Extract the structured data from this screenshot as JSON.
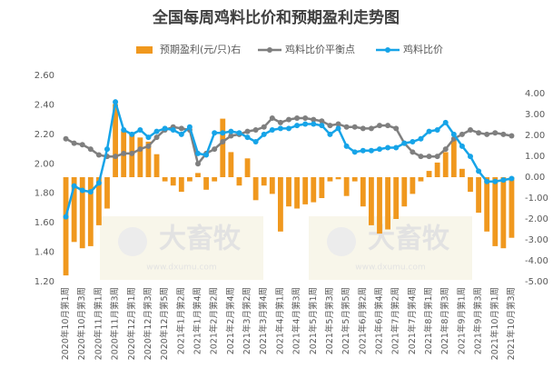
{
  "chart_data": {
    "type": "combo",
    "title": "全国每周鸡料比价和预期盈利走势图",
    "categories": [
      "2020年10月第1周",
      null,
      "2020年10月第3周",
      null,
      "2020年11月第1周",
      null,
      "2020年11月第3周",
      null,
      "2020年12月第1周",
      null,
      "2020年12月第3周",
      null,
      "2020年12月第5周",
      null,
      "2021年1月第2周",
      null,
      "2021年1月第4周",
      null,
      "2021年2月第2周",
      null,
      "2021年2月第4周",
      null,
      "2021年3月第2周",
      null,
      "2021年3月第4周",
      null,
      "2021年4月第1周",
      null,
      "2021年4月第3周",
      null,
      "2021年5月第1周",
      null,
      "2021年5月第3周",
      null,
      "2021年5月第5周",
      null,
      "2021年6月第2周",
      null,
      "2021年6月第4周",
      null,
      "2021年7月第2周",
      null,
      "2021年7月第4周",
      null,
      "2021年8月第1周",
      null,
      "2021年8月第3周",
      null,
      "2021年9月第1周",
      null,
      "2021年9月第3周",
      null,
      "2021年10月第1周",
      null,
      "2021年10月第3周"
    ],
    "series": [
      {
        "name": "预期盈利(元/只)右",
        "type": "bar",
        "axis": "y2",
        "color": "#f0981e",
        "values": [
          -4.7,
          -3.1,
          -3.4,
          -3.3,
          -2.3,
          -1.5,
          3.5,
          2.2,
          2.1,
          1.9,
          1.7,
          1.1,
          -0.2,
          -0.4,
          -0.7,
          -0.2,
          0.2,
          -0.6,
          -0.2,
          2.8,
          1.2,
          -0.4,
          0.9,
          -1.1,
          -0.4,
          -0.8,
          -2.6,
          -1.4,
          -1.5,
          -1.3,
          -1.2,
          -1.0,
          -0.2,
          -0.1,
          -0.9,
          -0.2,
          -1.4,
          -2.3,
          -2.7,
          -2.5,
          -2.0,
          -1.4,
          -0.8,
          -0.2,
          0.3,
          0.7,
          1.2,
          1.8,
          0.4,
          -0.7,
          -1.7,
          -2.6,
          -3.3,
          -3.4,
          -2.9
        ]
      },
      {
        "name": "鸡料比价平衡点",
        "type": "line",
        "color": "#7f7f7f",
        "values": [
          2.17,
          2.14,
          2.13,
          2.1,
          2.06,
          2.05,
          2.05,
          2.07,
          2.07,
          2.1,
          2.12,
          2.18,
          2.23,
          2.25,
          2.24,
          2.23,
          2.0,
          2.07,
          2.1,
          2.15,
          2.19,
          2.2,
          2.22,
          2.23,
          2.25,
          2.31,
          2.28,
          2.3,
          2.31,
          2.31,
          2.3,
          2.29,
          2.26,
          2.27,
          2.25,
          2.25,
          2.24,
          2.24,
          2.26,
          2.26,
          2.24,
          2.14,
          2.08,
          2.05,
          2.05,
          2.05,
          2.1,
          2.17,
          2.2,
          2.23,
          2.21,
          2.2,
          2.21,
          2.2,
          2.19
        ]
      },
      {
        "name": "鸡料比价",
        "type": "line",
        "color": "#16a4e8",
        "values": [
          1.64,
          1.85,
          1.82,
          1.81,
          1.87,
          2.1,
          2.42,
          2.23,
          2.2,
          2.23,
          2.18,
          2.22,
          2.24,
          2.23,
          2.2,
          2.25,
          2.07,
          2.06,
          2.21,
          2.21,
          2.22,
          2.21,
          2.18,
          2.15,
          2.2,
          2.23,
          2.24,
          2.24,
          2.26,
          2.27,
          2.27,
          2.26,
          2.2,
          2.24,
          2.12,
          2.08,
          2.09,
          2.09,
          2.1,
          2.11,
          2.11,
          2.14,
          2.15,
          2.17,
          2.22,
          2.23,
          2.28,
          2.2,
          2.12,
          2.05,
          1.95,
          1.88,
          1.88,
          1.89,
          1.9
        ]
      }
    ],
    "ylim": [
      1.2,
      2.6
    ],
    "yticks": [
      {
        "value": 1.2,
        "label": "1.20"
      },
      {
        "value": 1.4,
        "label": "1.40"
      },
      {
        "value": 1.6,
        "label": "1.60"
      },
      {
        "value": 1.8,
        "label": "1.80"
      },
      {
        "value": 2.0,
        "label": "2.00"
      },
      {
        "value": 2.2,
        "label": "2.20"
      },
      {
        "value": 2.4,
        "label": "2.40"
      },
      {
        "value": 2.6,
        "label": "2.60"
      }
    ],
    "y2lim": [
      -5,
      4
    ],
    "y2ticks": [
      {
        "value": -5,
        "label": "-5.00"
      },
      {
        "value": -4,
        "label": "-4.00"
      },
      {
        "value": -3,
        "label": "-3.00"
      },
      {
        "value": -2,
        "label": "-2.00"
      },
      {
        "value": -1,
        "label": "-1.00"
      },
      {
        "value": 0,
        "label": "0.00"
      },
      {
        "value": 1,
        "label": "1.00"
      },
      {
        "value": 2,
        "label": "2.00"
      },
      {
        "value": 3,
        "label": "3.00"
      },
      {
        "value": 4,
        "label": "4.00"
      }
    ]
  },
  "watermark": {
    "brand": "大畜牧",
    "url": "www.dxumu.com"
  }
}
